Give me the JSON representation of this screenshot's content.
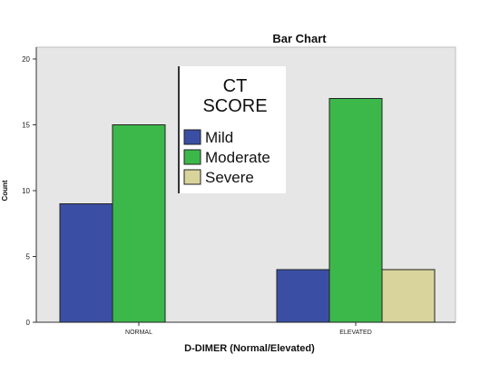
{
  "chart_data": {
    "type": "bar",
    "title": "Bar Chart",
    "xlabel": "D-DIMER (Normal/Elevated)",
    "ylabel": "Count",
    "categories": [
      "NORMAL",
      "ELEVATED"
    ],
    "series": [
      {
        "name": "Mild",
        "values": [
          9,
          4
        ],
        "color": "#3a4fa3"
      },
      {
        "name": "Moderate",
        "values": [
          15,
          17
        ],
        "color": "#3cb84a"
      },
      {
        "name": "Severe",
        "values": [
          0,
          4
        ],
        "color": "#d9d49b"
      }
    ],
    "ylim": [
      0,
      20
    ],
    "yticks": [
      0,
      5,
      10,
      15,
      20
    ],
    "legend": {
      "title_lines": [
        "CT",
        "SCORE"
      ],
      "placement": "top-center"
    },
    "plot_background": "#e6e6e6",
    "grid": false
  }
}
